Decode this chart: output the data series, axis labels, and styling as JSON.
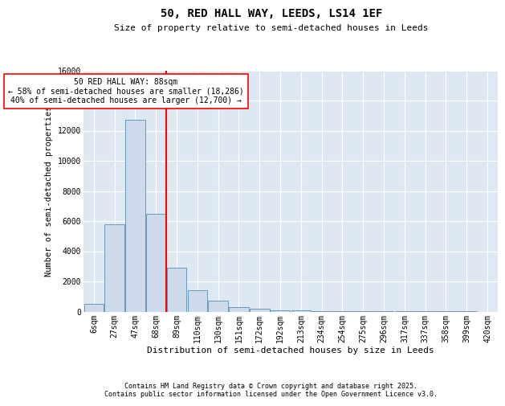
{
  "title1": "50, RED HALL WAY, LEEDS, LS14 1EF",
  "title2": "Size of property relative to semi-detached houses in Leeds",
  "xlabel": "Distribution of semi-detached houses by size in Leeds",
  "ylabel": "Number of semi-detached properties",
  "annotation_line1": "50 RED HALL WAY: 88sqm",
  "annotation_line2": "← 58% of semi-detached houses are smaller (18,286)",
  "annotation_line3": "40% of semi-detached houses are larger (12,700) →",
  "categories": [
    "6sqm",
    "27sqm",
    "47sqm",
    "68sqm",
    "89sqm",
    "110sqm",
    "130sqm",
    "151sqm",
    "172sqm",
    "192sqm",
    "213sqm",
    "234sqm",
    "254sqm",
    "275sqm",
    "296sqm",
    "317sqm",
    "337sqm",
    "358sqm",
    "399sqm",
    "420sqm"
  ],
  "values": [
    500,
    5800,
    12700,
    6500,
    2900,
    1400,
    700,
    300,
    200,
    100,
    60,
    35,
    20,
    12,
    6,
    4,
    2,
    1,
    1,
    0
  ],
  "bar_color": "#ccdaeb",
  "bar_edge_color": "#6699bb",
  "red_line_x": 3.5,
  "background_color": "#dde8f2",
  "ylim": [
    0,
    16000
  ],
  "yticks": [
    0,
    2000,
    4000,
    6000,
    8000,
    10000,
    12000,
    14000,
    16000
  ],
  "footer1": "Contains HM Land Registry data © Crown copyright and database right 2025.",
  "footer2": "Contains public sector information licensed under the Open Government Licence v3.0."
}
